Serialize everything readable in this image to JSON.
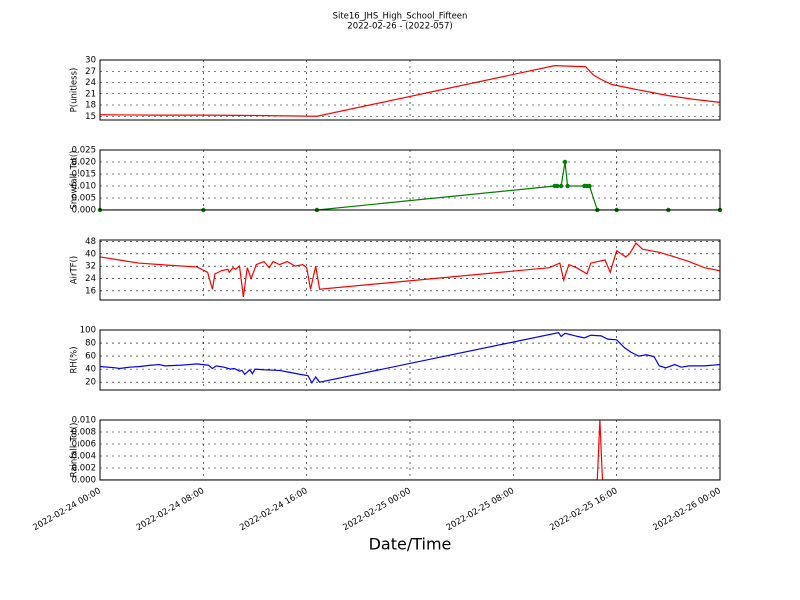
{
  "title": "Site16_JHS_High_School_Fifteen",
  "subtitle": "2022-02-26 - (2022-057)",
  "xlabel": "Date/Time",
  "xlim": [
    "2022-02-24 00:00",
    "2022-02-26 00:00"
  ],
  "xticks": [
    "2022-02-24 00:00",
    "2022-02-24 08:00",
    "2022-02-24 16:00",
    "2022-02-25 00:00",
    "2022-02-25 08:00",
    "2022-02-25 16:00",
    "2022-02-26 00:00"
  ],
  "grid": true,
  "chart_data": [
    {
      "type": "line",
      "ylabel": "P(unitless)",
      "color": "#ff0000",
      "ylim": [
        14,
        30
      ],
      "yticks": [
        15,
        18,
        21,
        24,
        27,
        30
      ],
      "x": [
        "2022-02-24 00:00",
        "2022-02-24 04:00",
        "2022-02-24 08:00",
        "2022-02-24 12:00",
        "2022-02-24 16:48",
        "2022-02-25 11:12",
        "2022-02-25 13:36",
        "2022-02-25 14:12",
        "2022-02-25 14:48",
        "2022-02-25 15:36",
        "2022-02-25 17:00",
        "2022-02-25 18:30",
        "2022-02-25 20:00",
        "2022-02-25 22:00",
        "2022-02-26 00:00"
      ],
      "values": [
        15.4,
        15.3,
        15.3,
        15.2,
        15.0,
        28.5,
        28.2,
        26,
        24.8,
        23.5,
        22.5,
        21.5,
        20.5,
        19.5,
        18.7
      ]
    },
    {
      "type": "line",
      "ylabel": "Snowfall_Tot()",
      "color": "#007f00",
      "marker": true,
      "ylim": [
        0,
        0.025
      ],
      "yticks": [
        {
          "value": 0,
          "label": "0.000"
        },
        {
          "value": 0.005,
          "label": "0.005"
        },
        {
          "value": 0.01,
          "label": "0.010"
        },
        {
          "value": 0.015,
          "label": "0.015"
        },
        {
          "value": 0.02,
          "label": "0.020"
        },
        {
          "value": 0.025,
          "label": "0.025"
        }
      ],
      "x": [
        "2022-02-24 00:00",
        "2022-02-24 08:00",
        "2022-02-24 16:48",
        "2022-02-25 11:12",
        "2022-02-25 11:24",
        "2022-02-25 11:42",
        "2022-02-25 12:00",
        "2022-02-25 12:12",
        "2022-02-25 13:30",
        "2022-02-25 13:42",
        "2022-02-25 13:54",
        "2022-02-25 14:30",
        "2022-02-25 16:00",
        "2022-02-25 20:00",
        "2022-02-26 00:00"
      ],
      "values": [
        0,
        0,
        0,
        0.01,
        0.01,
        0.01,
        0.02,
        0.01,
        0.01,
        0.01,
        0.01,
        0,
        0,
        0,
        0
      ]
    },
    {
      "type": "line",
      "ylabel": "AirTF()",
      "color": "#ff0000",
      "ylim": [
        10,
        49
      ],
      "yticks": [
        16,
        24,
        32,
        40,
        48
      ],
      "x": [
        "2022-02-24 00:00",
        "2022-02-24 01:30",
        "2022-02-24 03:00",
        "2022-02-24 05:30",
        "2022-02-24 07:30",
        "2022-02-24 08:20",
        "2022-02-24 08:42",
        "2022-02-24 08:54",
        "2022-02-24 09:24",
        "2022-02-24 09:54",
        "2022-02-24 10:00",
        "2022-02-24 10:18",
        "2022-02-24 10:30",
        "2022-02-24 10:48",
        "2022-02-24 11:06",
        "2022-02-24 11:24",
        "2022-02-24 11:42",
        "2022-02-24 12:06",
        "2022-02-24 12:24",
        "2022-02-24 12:42",
        "2022-02-24 13:06",
        "2022-02-24 13:24",
        "2022-02-24 13:54",
        "2022-02-24 14:30",
        "2022-02-24 15:06",
        "2022-02-24 15:42",
        "2022-02-24 16:00",
        "2022-02-24 16:18",
        "2022-02-24 16:42",
        "2022-02-24 17:00",
        "2022-02-25 10:48",
        "2022-02-25 11:36",
        "2022-02-25 11:54",
        "2022-02-25 12:18",
        "2022-02-25 12:54",
        "2022-02-25 13:42",
        "2022-02-25 14:00",
        "2022-02-25 15:06",
        "2022-02-25 15:30",
        "2022-02-25 16:00",
        "2022-02-25 16:42",
        "2022-02-25 17:00",
        "2022-02-25 17:30",
        "2022-02-25 18:00",
        "2022-02-25 19:18",
        "2022-02-25 20:30",
        "2022-02-25 21:36",
        "2022-02-25 22:48",
        "2022-02-26 00:00"
      ],
      "values": [
        38,
        36,
        34,
        32.5,
        31.5,
        28,
        17,
        27,
        29,
        30,
        28,
        31,
        30,
        32,
        12,
        31,
        24,
        33,
        34,
        35,
        31,
        35,
        33,
        35,
        32,
        33,
        31,
        17,
        32,
        17,
        31,
        34,
        23,
        33,
        31,
        27,
        34,
        36,
        28,
        42,
        38,
        40,
        47,
        43,
        41,
        38,
        35,
        31,
        29
      ]
    },
    {
      "type": "line",
      "ylabel": "RH(%)",
      "color": "#0000ff",
      "ylim": [
        8,
        100
      ],
      "yticks": [
        20,
        40,
        60,
        80,
        100
      ],
      "x": [
        "2022-02-24 00:00",
        "2022-02-24 01:12",
        "2022-02-24 01:30",
        "2022-02-24 02:18",
        "2022-02-24 03:06",
        "2022-02-24 03:54",
        "2022-02-24 04:36",
        "2022-02-24 05:00",
        "2022-02-24 06:12",
        "2022-02-24 06:54",
        "2022-02-24 07:30",
        "2022-02-24 08:24",
        "2022-02-24 08:42",
        "2022-02-24 09:00",
        "2022-02-24 09:36",
        "2022-02-24 10:06",
        "2022-02-24 10:24",
        "2022-02-24 10:48",
        "2022-02-24 11:00",
        "2022-02-24 11:12",
        "2022-02-24 11:36",
        "2022-02-24 11:48",
        "2022-02-24 12:00",
        "2022-02-24 12:42",
        "2022-02-24 13:54",
        "2022-02-24 14:42",
        "2022-02-24 15:30",
        "2022-02-24 16:06",
        "2022-02-24 16:24",
        "2022-02-24 16:42",
        "2022-02-24 17:00",
        "2022-02-25 11:30",
        "2022-02-25 11:42",
        "2022-02-25 12:00",
        "2022-02-25 13:00",
        "2022-02-25 13:30",
        "2022-02-25 14:00",
        "2022-02-25 14:48",
        "2022-02-25 15:18",
        "2022-02-25 16:00",
        "2022-02-25 16:36",
        "2022-02-25 17:06",
        "2022-02-25 17:42",
        "2022-02-25 18:18",
        "2022-02-25 18:54",
        "2022-02-25 19:18",
        "2022-02-25 19:48",
        "2022-02-25 20:30",
        "2022-02-25 21:00",
        "2022-02-25 21:36",
        "2022-02-25 22:48",
        "2022-02-26 00:00"
      ],
      "values": [
        44,
        42,
        41,
        43,
        44,
        46,
        47,
        45,
        46,
        47,
        48,
        46,
        41,
        45,
        43,
        40,
        41,
        37,
        38,
        32,
        39,
        33,
        40,
        39,
        38,
        35,
        32,
        30,
        19,
        28,
        20,
        96,
        90,
        95,
        90,
        88,
        92,
        91,
        86,
        85,
        73,
        66,
        60,
        62,
        59,
        45,
        42,
        47,
        43,
        45,
        45,
        47
      ]
    },
    {
      "type": "line",
      "ylabel": "Rainfall_Tot()",
      "color": "#ff0000",
      "ylim": [
        0,
        0.01
      ],
      "yticks": [
        {
          "value": 0,
          "label": "0.000"
        },
        {
          "value": 0.002,
          "label": "0.002"
        },
        {
          "value": 0.004,
          "label": "0.004"
        },
        {
          "value": 0.006,
          "label": "0.006"
        },
        {
          "value": 0.008,
          "label": "0.008"
        },
        {
          "value": 0.01,
          "label": "0.010"
        }
      ],
      "x": [
        "2022-02-24 00:00",
        "2022-02-25 14:30",
        "2022-02-25 14:42",
        "2022-02-25 14:54",
        "2022-02-26 00:00"
      ],
      "values": [
        0,
        0,
        0.01,
        0,
        0
      ]
    }
  ]
}
